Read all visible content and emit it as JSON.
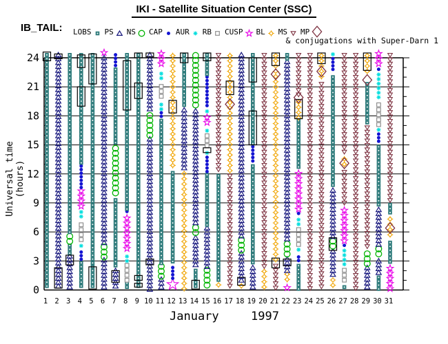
{
  "title": "IKI - Satellite Situation Center (SSC)",
  "dataset_label": "IB_TAIL:",
  "note": "& conjugations with Super-Darn 1",
  "legend": {
    "items": [
      {
        "label": "LOBS",
        "type": "LOBS"
      },
      {
        "label": "PS",
        "type": "PS"
      },
      {
        "label": "NS",
        "type": "NS"
      },
      {
        "label": "CAP",
        "type": "CAP"
      },
      {
        "label": "AUR",
        "type": "AUR"
      },
      {
        "label": "RB",
        "type": "RB"
      },
      {
        "label": "CUSP",
        "type": "CUSP"
      },
      {
        "label": "BL",
        "type": "BL"
      },
      {
        "label": "MS",
        "type": "MS"
      },
      {
        "label": "MP",
        "type": "MP"
      }
    ]
  },
  "chart_data": {
    "type": "scatter",
    "title": "IKI - Satellite Situation Center (SSC)",
    "xlabel_month": "January",
    "xlabel_year": "1997",
    "ylabel": "Universal time (hours)",
    "x_days": [
      1,
      2,
      3,
      4,
      5,
      6,
      7,
      8,
      9,
      10,
      11,
      12,
      13,
      14,
      15,
      16,
      17,
      18,
      19,
      20,
      21,
      22,
      23,
      24,
      25,
      26,
      27,
      28,
      29,
      30,
      31
    ],
    "yticks": [
      0,
      3,
      6,
      9,
      12,
      15,
      18,
      21,
      24
    ],
    "ylim": [
      0,
      24
    ],
    "grid": "horizontal-3h",
    "colors": {
      "LOBS": "#2e7b7b",
      "PS": "#16167d",
      "NS": "#00b400",
      "CAP": "#1414d2",
      "AUR": "#00dede",
      "RB": "#909090",
      "CUSP": "#e800e8",
      "BL": "#f0a400",
      "MS": "#7d3140",
      "MP": "#7d3140",
      "axis": "#000000"
    },
    "days": [
      {
        "day": 1,
        "segments": [
          [
            0,
            24.5,
            "LOBS"
          ]
        ],
        "rects": [
          [
            23.7,
            24.6
          ]
        ],
        "mp": []
      },
      {
        "day": 2,
        "segments": [
          [
            0,
            24.5,
            "PS"
          ]
        ],
        "rects": [
          [
            0.2,
            2.3
          ],
          [
            23.9,
            24.4
          ]
        ],
        "mp": []
      },
      {
        "day": 3,
        "segments": [
          [
            0,
            3.7,
            "PS"
          ],
          [
            3.7,
            4.8,
            "LOBS"
          ],
          [
            4.8,
            5.8,
            "NS"
          ],
          [
            5.8,
            24.5,
            "LOBS"
          ]
        ],
        "rects": [
          [
            2.6,
            3.6
          ]
        ],
        "mp": []
      },
      {
        "day": 4,
        "segments": [
          [
            0,
            3.0,
            "LOBS"
          ],
          [
            3.0,
            4.1,
            "CAP"
          ],
          [
            4.2,
            4.8,
            "AUR"
          ],
          [
            4.9,
            7.0,
            "RB"
          ],
          [
            7.1,
            8.3,
            "AUR"
          ],
          [
            8.4,
            10.5,
            "CUSP"
          ],
          [
            10.5,
            13.0,
            "CAP"
          ],
          [
            13.0,
            24.5,
            "LOBS"
          ]
        ],
        "rects": [
          [
            19.0,
            21.0
          ],
          [
            23.0,
            24.3
          ]
        ],
        "mp": []
      },
      {
        "day": 5,
        "segments": [
          [
            0,
            24.5,
            "LOBS"
          ]
        ],
        "rects": [
          [
            0.1,
            2.4
          ],
          [
            21.3,
            24.4
          ]
        ],
        "mp": []
      },
      {
        "day": 6,
        "segments": [
          [
            0,
            3.3,
            "PS"
          ],
          [
            3.3,
            4.7,
            "NS"
          ],
          [
            4.7,
            24.2,
            "PS"
          ],
          [
            24.2,
            24.8,
            "CUSP"
          ]
        ],
        "rects": [],
        "mp": []
      },
      {
        "day": 7,
        "segments": [
          [
            0,
            2.2,
            "PS"
          ],
          [
            2.2,
            9.5,
            "LOBS"
          ],
          [
            9.5,
            14.9,
            "NS"
          ],
          [
            14.9,
            23.0,
            "LOBS"
          ],
          [
            23.0,
            24.5,
            "CAP"
          ]
        ],
        "rects": [
          [
            0.8,
            2.0
          ]
        ],
        "mp": []
      },
      {
        "day": 8,
        "segments": [
          [
            0,
            0.9,
            "LOBS"
          ],
          [
            0.9,
            2.8,
            "RB"
          ],
          [
            2.9,
            3.7,
            "AUR"
          ],
          [
            3.8,
            7.7,
            "CUSP"
          ],
          [
            7.7,
            8.3,
            "CAP"
          ],
          [
            8.3,
            24.5,
            "LOBS"
          ]
        ],
        "rects": [
          [
            18.6,
            23.7
          ]
        ],
        "mp": []
      },
      {
        "day": 9,
        "segments": [
          [
            0,
            24.5,
            "LOBS"
          ]
        ],
        "rects": [
          [
            0.3,
            0.7
          ],
          [
            1.0,
            1.5
          ],
          [
            19.8,
            21.4
          ],
          [
            24.0,
            24.5
          ]
        ],
        "mp": []
      },
      {
        "day": 10,
        "segments": [
          [
            0,
            15.8,
            "PS"
          ],
          [
            15.8,
            18.3,
            "NS"
          ],
          [
            18.3,
            24.5,
            "PS"
          ]
        ],
        "rects": [
          [
            2.6,
            3.2
          ],
          [
            24.1,
            24.5
          ]
        ],
        "mp": []
      },
      {
        "day": 11,
        "segments": [
          [
            0,
            1.3,
            "PS"
          ],
          [
            1.3,
            2.7,
            "NS"
          ],
          [
            2.7,
            17.7,
            "LOBS"
          ],
          [
            17.7,
            18.5,
            "CAP"
          ],
          [
            18.6,
            19.4,
            "AUR"
          ],
          [
            19.6,
            21.3,
            "RB"
          ],
          [
            21.4,
            22.6,
            "AUR"
          ],
          [
            22.8,
            24.7,
            "CUSP"
          ]
        ],
        "rects": [],
        "mp": []
      },
      {
        "day": 12,
        "segments": [
          [
            0,
            1.1,
            "CUSP",
            "big"
          ],
          [
            1.1,
            2.5,
            "CAP"
          ],
          [
            2.5,
            12.3,
            "LOBS"
          ],
          [
            12.3,
            24.5,
            "BL"
          ]
        ],
        "rects": [
          [
            18.3,
            19.6
          ]
        ],
        "mp": []
      },
      {
        "day": 13,
        "segments": [
          [
            0,
            12.3,
            "BL"
          ],
          [
            12.3,
            18.8,
            "PS"
          ],
          [
            18.8,
            24.5,
            "LOBS"
          ]
        ],
        "rects": [
          [
            23.5,
            24.5
          ]
        ],
        "mp": []
      },
      {
        "day": 14,
        "segments": [
          [
            0,
            2.2,
            "LOBS"
          ],
          [
            2.2,
            5.6,
            "PS"
          ],
          [
            5.6,
            6.7,
            "NS"
          ],
          [
            6.7,
            18.7,
            "PS"
          ],
          [
            18.9,
            24.5,
            "NS"
          ]
        ],
        "rects": [
          [
            0.1,
            1.0
          ]
        ],
        "mp": []
      },
      {
        "day": 15,
        "segments": [
          [
            0,
            2.3,
            "NS"
          ],
          [
            2.3,
            6.6,
            "PS"
          ],
          [
            6.6,
            12.1,
            "LOBS"
          ],
          [
            12.1,
            13.9,
            "CAP"
          ],
          [
            14.0,
            14.4,
            "AUR"
          ],
          [
            14.5,
            16.2,
            "RB"
          ],
          [
            16.3,
            16.7,
            "AUR"
          ],
          [
            16.9,
            18.1,
            "CUSP"
          ],
          [
            18.3,
            18.7,
            "AUR"
          ],
          [
            18.8,
            22.2,
            "CAP"
          ],
          [
            22.2,
            24.5,
            "LOBS"
          ]
        ],
        "rects": [
          [
            14.2,
            14.7
          ],
          [
            23.7,
            24.5
          ]
        ],
        "mp": []
      },
      {
        "day": 16,
        "segments": [
          [
            0,
            0.8,
            "BL"
          ],
          [
            0.8,
            12.0,
            "LOBS"
          ],
          [
            12.0,
            24.5,
            "MS"
          ]
        ],
        "rects": [],
        "mp": []
      },
      {
        "day": 17,
        "segments": [
          [
            0,
            12.0,
            "MS"
          ],
          [
            12.0,
            24.5,
            "BL"
          ]
        ],
        "rects": [
          [
            20.2,
            21.6
          ]
        ],
        "mp": [
          19.2
        ]
      },
      {
        "day": 18,
        "segments": [
          [
            0,
            0.7,
            "BL"
          ],
          [
            0.7,
            4.0,
            "PS"
          ],
          [
            4.0,
            5.4,
            "NS"
          ],
          [
            5.4,
            24.5,
            "PS"
          ]
        ],
        "rects": [
          [
            0.5,
            1.3
          ]
        ],
        "mp": []
      },
      {
        "day": 19,
        "segments": [
          [
            0,
            2.5,
            "PS"
          ],
          [
            2.5,
            13.0,
            "LOBS"
          ],
          [
            13.0,
            15.0,
            "CAP"
          ],
          [
            15.0,
            24.5,
            "LOBS"
          ]
        ],
        "rects": [
          [
            15.0,
            18.5
          ],
          [
            21.5,
            24.0
          ]
        ],
        "mp": []
      },
      {
        "day": 20,
        "segments": [
          [
            0,
            2.2,
            "BL"
          ],
          [
            2.2,
            24.5,
            "MS"
          ]
        ],
        "rects": [],
        "mp": []
      },
      {
        "day": 21,
        "segments": [
          [
            0,
            2.7,
            "MS"
          ],
          [
            2.7,
            24.5,
            "BL"
          ]
        ],
        "rects": [
          [
            2.3,
            3.3
          ],
          [
            23.2,
            24.5
          ]
        ],
        "mp": [
          22.3
        ]
      },
      {
        "day": 22,
        "segments": [
          [
            0,
            0.5,
            "CUSP"
          ],
          [
            0.5,
            1.9,
            "BL"
          ],
          [
            1.9,
            3.4,
            "PS"
          ],
          [
            3.4,
            5.0,
            "NS"
          ],
          [
            5.0,
            23.8,
            "PS"
          ],
          [
            23.8,
            24.5,
            "LOBS"
          ]
        ],
        "rects": [
          [
            2.5,
            3.2
          ]
        ],
        "mp": []
      },
      {
        "day": 23,
        "segments": [
          [
            0,
            2.7,
            "LOBS"
          ],
          [
            2.7,
            3.6,
            "CAP"
          ],
          [
            3.8,
            4.4,
            "AUR"
          ],
          [
            4.5,
            6.5,
            "RB"
          ],
          [
            6.6,
            7.5,
            "AUR"
          ],
          [
            7.6,
            8.1,
            "CAP"
          ],
          [
            8.2,
            12.3,
            "CUSP"
          ],
          [
            12.3,
            17.7,
            "LOBS"
          ],
          [
            17.7,
            19.7,
            "BL"
          ],
          [
            19.7,
            24.5,
            "MS"
          ]
        ],
        "rects": [
          [
            17.7,
            19.7
          ]
        ],
        "mp": [
          19.9
        ]
      },
      {
        "day": 24,
        "segments": [
          [
            0,
            24.5,
            "MS"
          ]
        ],
        "rects": [],
        "mp": []
      },
      {
        "day": 25,
        "segments": [
          [
            0,
            21.5,
            "MS"
          ],
          [
            21.5,
            24.5,
            "BL"
          ]
        ],
        "rects": [
          [
            23.4,
            24.5
          ]
        ],
        "mp": [
          22.6
        ]
      },
      {
        "day": 26,
        "segments": [
          [
            0,
            1.3,
            "BL"
          ],
          [
            1.3,
            4.2,
            "PS"
          ],
          [
            4.2,
            5.3,
            "NS"
          ],
          [
            5.3,
            10.5,
            "PS"
          ],
          [
            10.5,
            22.2,
            "LOBS"
          ],
          [
            22.4,
            24.1,
            "CAP"
          ],
          [
            24.2,
            24.6,
            "AUR"
          ]
        ],
        "rects": [
          [
            4.1,
            5.4
          ]
        ],
        "mp": []
      },
      {
        "day": 27,
        "segments": [
          [
            0,
            0.5,
            "LOBS"
          ],
          [
            0.5,
            2.3,
            "RB"
          ],
          [
            2.5,
            4.3,
            "AUR"
          ],
          [
            4.4,
            4.8,
            "CAP"
          ],
          [
            4.8,
            8.5,
            "CUSP"
          ],
          [
            8.7,
            12.4,
            "MS"
          ],
          [
            12.4,
            13.8,
            "BL"
          ],
          [
            13.8,
            24.5,
            "MS"
          ]
        ],
        "rects": [],
        "mp": [
          13.1
        ]
      },
      {
        "day": 28,
        "segments": [
          [
            0,
            24.5,
            "MS"
          ]
        ],
        "rects": [],
        "mp": []
      },
      {
        "day": 29,
        "segments": [
          [
            0,
            2.5,
            "PS"
          ],
          [
            2.5,
            4.0,
            "NS"
          ],
          [
            4.2,
            17.0,
            "MS"
          ],
          [
            17.0,
            21.5,
            "LOBS"
          ],
          [
            22.0,
            24.5,
            "BL"
          ]
        ],
        "rects": [
          [
            22.7,
            24.5
          ]
        ],
        "mp": [
          21.7
        ]
      },
      {
        "day": 30,
        "segments": [
          [
            0,
            1.5,
            "LOBS"
          ],
          [
            1.5,
            3.2,
            "PS"
          ],
          [
            3.2,
            4.5,
            "NS"
          ],
          [
            4.5,
            8.5,
            "PS"
          ],
          [
            8.5,
            15.0,
            "LOBS"
          ],
          [
            15.0,
            16.3,
            "CAP"
          ],
          [
            16.4,
            16.8,
            "AUR"
          ],
          [
            17.0,
            19.4,
            "RB"
          ],
          [
            19.5,
            22.5,
            "AUR"
          ],
          [
            22.6,
            23.0,
            "CAP"
          ],
          [
            23.0,
            24.7,
            "CUSP"
          ]
        ],
        "rects": [],
        "mp": []
      },
      {
        "day": 31,
        "segments": [
          [
            0,
            2.5,
            "CUSP"
          ],
          [
            2.5,
            5.1,
            "LOBS"
          ],
          [
            5.2,
            7.6,
            "BL"
          ],
          [
            7.6,
            9.0,
            "LOBS"
          ],
          [
            9.0,
            24.5,
            "MS"
          ]
        ],
        "rects": [],
        "mp": [
          6.4
        ]
      }
    ]
  }
}
